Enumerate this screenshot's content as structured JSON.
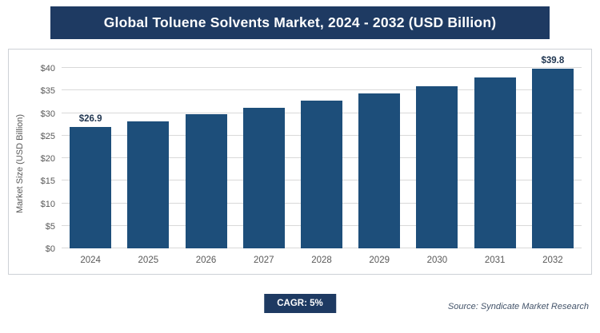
{
  "title": "Global Toluene Solvents Market, 2024 - 2032 (USD Billion)",
  "chart_data": {
    "type": "bar",
    "title": "Global Toluene Solvents Market, 2024 - 2032 (USD Billion)",
    "categories": [
      "2024",
      "2025",
      "2026",
      "2027",
      "2028",
      "2029",
      "2030",
      "2031",
      "2032"
    ],
    "values": [
      26.9,
      28.2,
      29.7,
      31.1,
      32.7,
      34.3,
      36.0,
      37.8,
      39.8
    ],
    "data_labels": [
      "$26.9",
      "",
      "",
      "",
      "",
      "",
      "",
      "",
      "$39.8"
    ],
    "xlabel": "",
    "ylabel": "Market Size (USD Billion)",
    "ylim": [
      0,
      40
    ],
    "ytick_step": 5,
    "ytick_prefix": "$",
    "grid": true,
    "legend": false,
    "bar_color": "#1d4e7a"
  },
  "footer": {
    "cagr_label": "CAGR: 5%",
    "source": "Source: Syndicate Market Research"
  },
  "colors": {
    "banner_bg": "#1e3a62",
    "bar": "#1d4e7a",
    "gridline": "#d9d9d9",
    "axis_text": "#595959",
    "badge_bg": "#1e3a62",
    "source_text": "#44546a"
  }
}
